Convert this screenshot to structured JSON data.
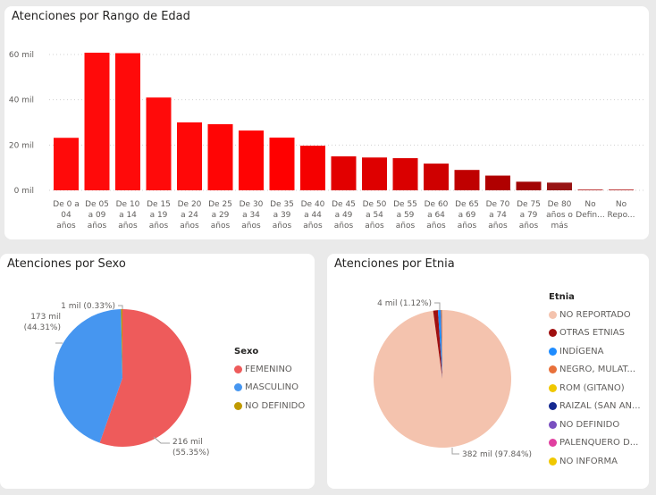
{
  "chart_data": [
    {
      "type": "bar",
      "title": "Atenciones por Rango de Edad",
      "xlabel": "",
      "ylabel": "",
      "ylim": [
        0,
        70
      ],
      "yticks": [
        "0 mil",
        "20 mil",
        "40 mil",
        "60 mil"
      ],
      "ytick_values": [
        0,
        20,
        40,
        60
      ],
      "unit": "mil",
      "categories": [
        "De 0 a 04 años",
        "De 05 a 09 años",
        "De 10 a 14 años",
        "De 15 a 19 años",
        "De 20 a 24 años",
        "De 25 a 29 años",
        "De 30 a 34 años",
        "De 35 a 39 años",
        "De 40 a 44 años",
        "De 45 a 49 años",
        "De 50 a 54 años",
        "De 55 a 59 años",
        "De 60 a 64 años",
        "De 65 a 69 años",
        "De 70 a 74 años",
        "De 75 a 79 años",
        "De 80 años o más",
        "No Defin...",
        "No Repo..."
      ],
      "category_lines": [
        [
          "De 0 a",
          "04",
          "años"
        ],
        [
          "De 05",
          "a 09",
          "años"
        ],
        [
          "De 10",
          "a 14",
          "años"
        ],
        [
          "De 15",
          "a 19",
          "años"
        ],
        [
          "De 20",
          "a 24",
          "años"
        ],
        [
          "De 25",
          "a 29",
          "años"
        ],
        [
          "De 30",
          "a 34",
          "años"
        ],
        [
          "De 35",
          "a 39",
          "años"
        ],
        [
          "De 40",
          "a 44",
          "años"
        ],
        [
          "De 45",
          "a 49",
          "años"
        ],
        [
          "De 50",
          "a 54",
          "años"
        ],
        [
          "De 55",
          "a 59",
          "años"
        ],
        [
          "De 60",
          "a 64",
          "años"
        ],
        [
          "De 65",
          "a 69",
          "años"
        ],
        [
          "De 70",
          "a 74",
          "años"
        ],
        [
          "De 75",
          "a 79",
          "años"
        ],
        [
          "De 80",
          "años o",
          "más"
        ],
        [
          "No",
          "Defin..."
        ],
        [
          "No",
          "Repo..."
        ]
      ],
      "values": [
        23.2,
        60.8,
        60.6,
        41,
        30,
        29.2,
        26.4,
        23.3,
        19.7,
        15,
        14.5,
        14.2,
        11.8,
        9,
        6.5,
        3.8,
        3.4,
        0.3,
        0.3
      ],
      "colors": [
        "#ff0a0a",
        "#ff0a0a",
        "#ff0a0a",
        "#ff0a0a",
        "#ff0808",
        "#ff0505",
        "#ff0303",
        "#ff0000",
        "#f50000",
        "#e20000",
        "#de0000",
        "#da0000",
        "#cf0000",
        "#bf0000",
        "#b00000",
        "#a20404",
        "#981414",
        "#c04040",
        "#c04040"
      ]
    },
    {
      "type": "pie",
      "title": "Atenciones por Sexo",
      "legend_title": "Sexo",
      "legend_position": "right",
      "slices": [
        {
          "label": "FEMENINO",
          "value": 216,
          "pct": 55.35,
          "color": "#ee5b5b",
          "data_label": "216 mil\n(55.35%)"
        },
        {
          "label": "MASCULINO",
          "value": 173,
          "pct": 44.31,
          "color": "#4696f0",
          "data_label": "173 mil\n(44.31%)"
        },
        {
          "label": "NO DEFINIDO",
          "value": 1,
          "pct": 0.33,
          "color": "#c09a00",
          "data_label": "1 mil (0.33%)"
        }
      ]
    },
    {
      "type": "pie",
      "title": "Atenciones por Etnia",
      "legend_title": "Etnia",
      "legend_position": "right",
      "slices": [
        {
          "label": "NO REPORTADO",
          "value": 382,
          "pct": 97.84,
          "color": "#f4c3ae",
          "data_label": "382 mil (97.84%)"
        },
        {
          "label": "OTRAS ETNIAS",
          "value": 4,
          "pct": 1.12,
          "color": "#a01010",
          "data_label": "4 mil (1.12%)"
        },
        {
          "label": "INDÍGENA",
          "pct": 0.7,
          "color": "#1e8cff"
        },
        {
          "label": "NEGRO, MULAT...",
          "pct": 0.2,
          "color": "#e8703a"
        },
        {
          "label": "ROM (GITANO)",
          "pct": 0.05,
          "color": "#f0c800"
        },
        {
          "label": "RAIZAL (SAN AN...",
          "pct": 0.04,
          "color": "#142890"
        },
        {
          "label": "NO DEFINIDO",
          "pct": 0.02,
          "color": "#7a50c0"
        },
        {
          "label": "PALENQUERO D...",
          "pct": 0.02,
          "color": "#e040a0"
        },
        {
          "label": "NO INFORMA",
          "pct": 0.01,
          "color": "#f0c800"
        }
      ]
    }
  ]
}
